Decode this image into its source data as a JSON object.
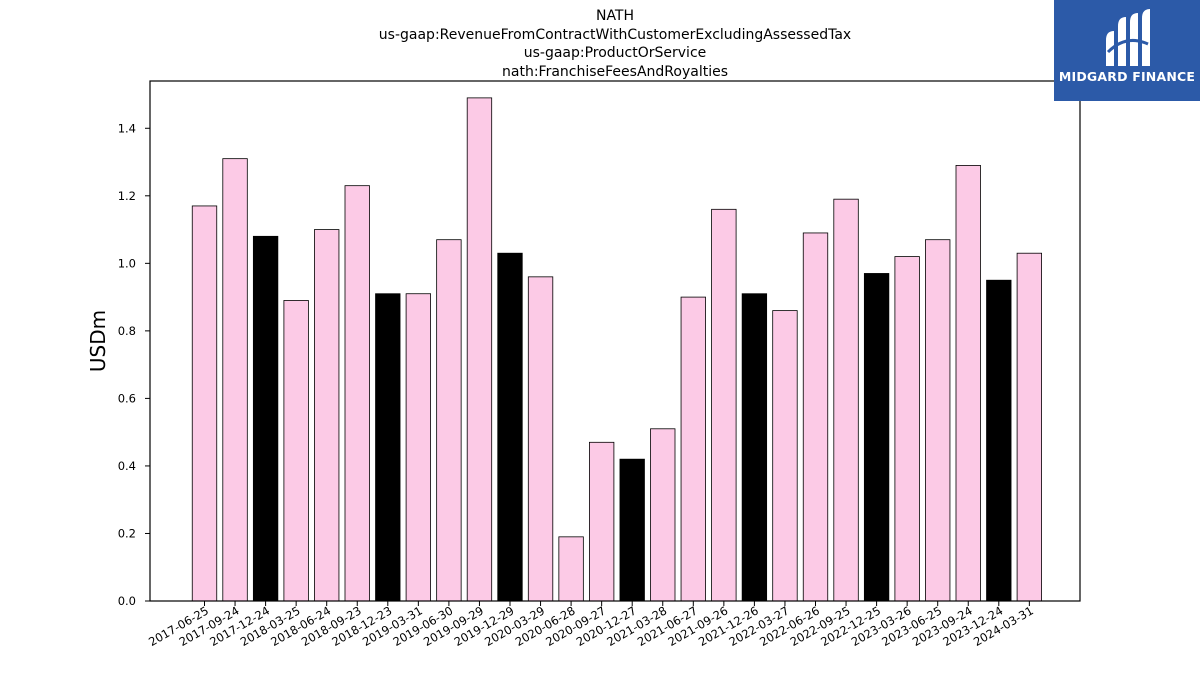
{
  "chart_data": {
    "type": "bar",
    "title_lines": [
      "NATH",
      "us-gaap:RevenueFromContractWithCustomerExcludingAssessedTax",
      "us-gaap:ProductOrService",
      "nath:FranchiseFeesAndRoyalties"
    ],
    "ylabel": "USDm",
    "ylim": [
      0,
      1.54
    ],
    "yticks": [
      "0.0",
      "0.2",
      "0.4",
      "0.6",
      "0.8",
      "1.0",
      "1.2",
      "1.4"
    ],
    "categories": [
      "2017-06-25",
      "2017-09-24",
      "2017-12-24",
      "2018-03-25",
      "2018-06-24",
      "2018-09-23",
      "2018-12-23",
      "2019-03-31",
      "2019-06-30",
      "2019-09-29",
      "2019-12-29",
      "2020-03-29",
      "2020-06-28",
      "2020-09-27",
      "2020-12-27",
      "2021-03-28",
      "2021-06-27",
      "2021-09-26",
      "2021-12-26",
      "2022-03-27",
      "2022-06-26",
      "2022-09-25",
      "2022-12-25",
      "2023-03-26",
      "2023-06-25",
      "2023-09-24",
      "2023-12-24",
      "2024-03-31"
    ],
    "values": [
      1.17,
      1.31,
      1.08,
      0.89,
      1.1,
      1.23,
      0.91,
      0.91,
      1.07,
      1.49,
      1.03,
      0.96,
      0.19,
      0.47,
      0.42,
      0.51,
      0.9,
      1.16,
      0.91,
      0.86,
      1.09,
      1.19,
      0.97,
      1.02,
      1.07,
      1.29,
      0.95,
      1.03
    ],
    "highlight": [
      false,
      false,
      true,
      false,
      false,
      false,
      true,
      false,
      false,
      false,
      true,
      false,
      false,
      false,
      true,
      false,
      false,
      false,
      true,
      false,
      false,
      false,
      true,
      false,
      false,
      false,
      true,
      false
    ],
    "colors": {
      "bar": "#fccae6",
      "highlight": "#000000",
      "edge": "#000000"
    },
    "grid": false,
    "legend": "none"
  },
  "logo": {
    "text": "MIDGARD FINANCE",
    "background": "#2c5aa8",
    "icon": "midgard-logo-icon"
  }
}
